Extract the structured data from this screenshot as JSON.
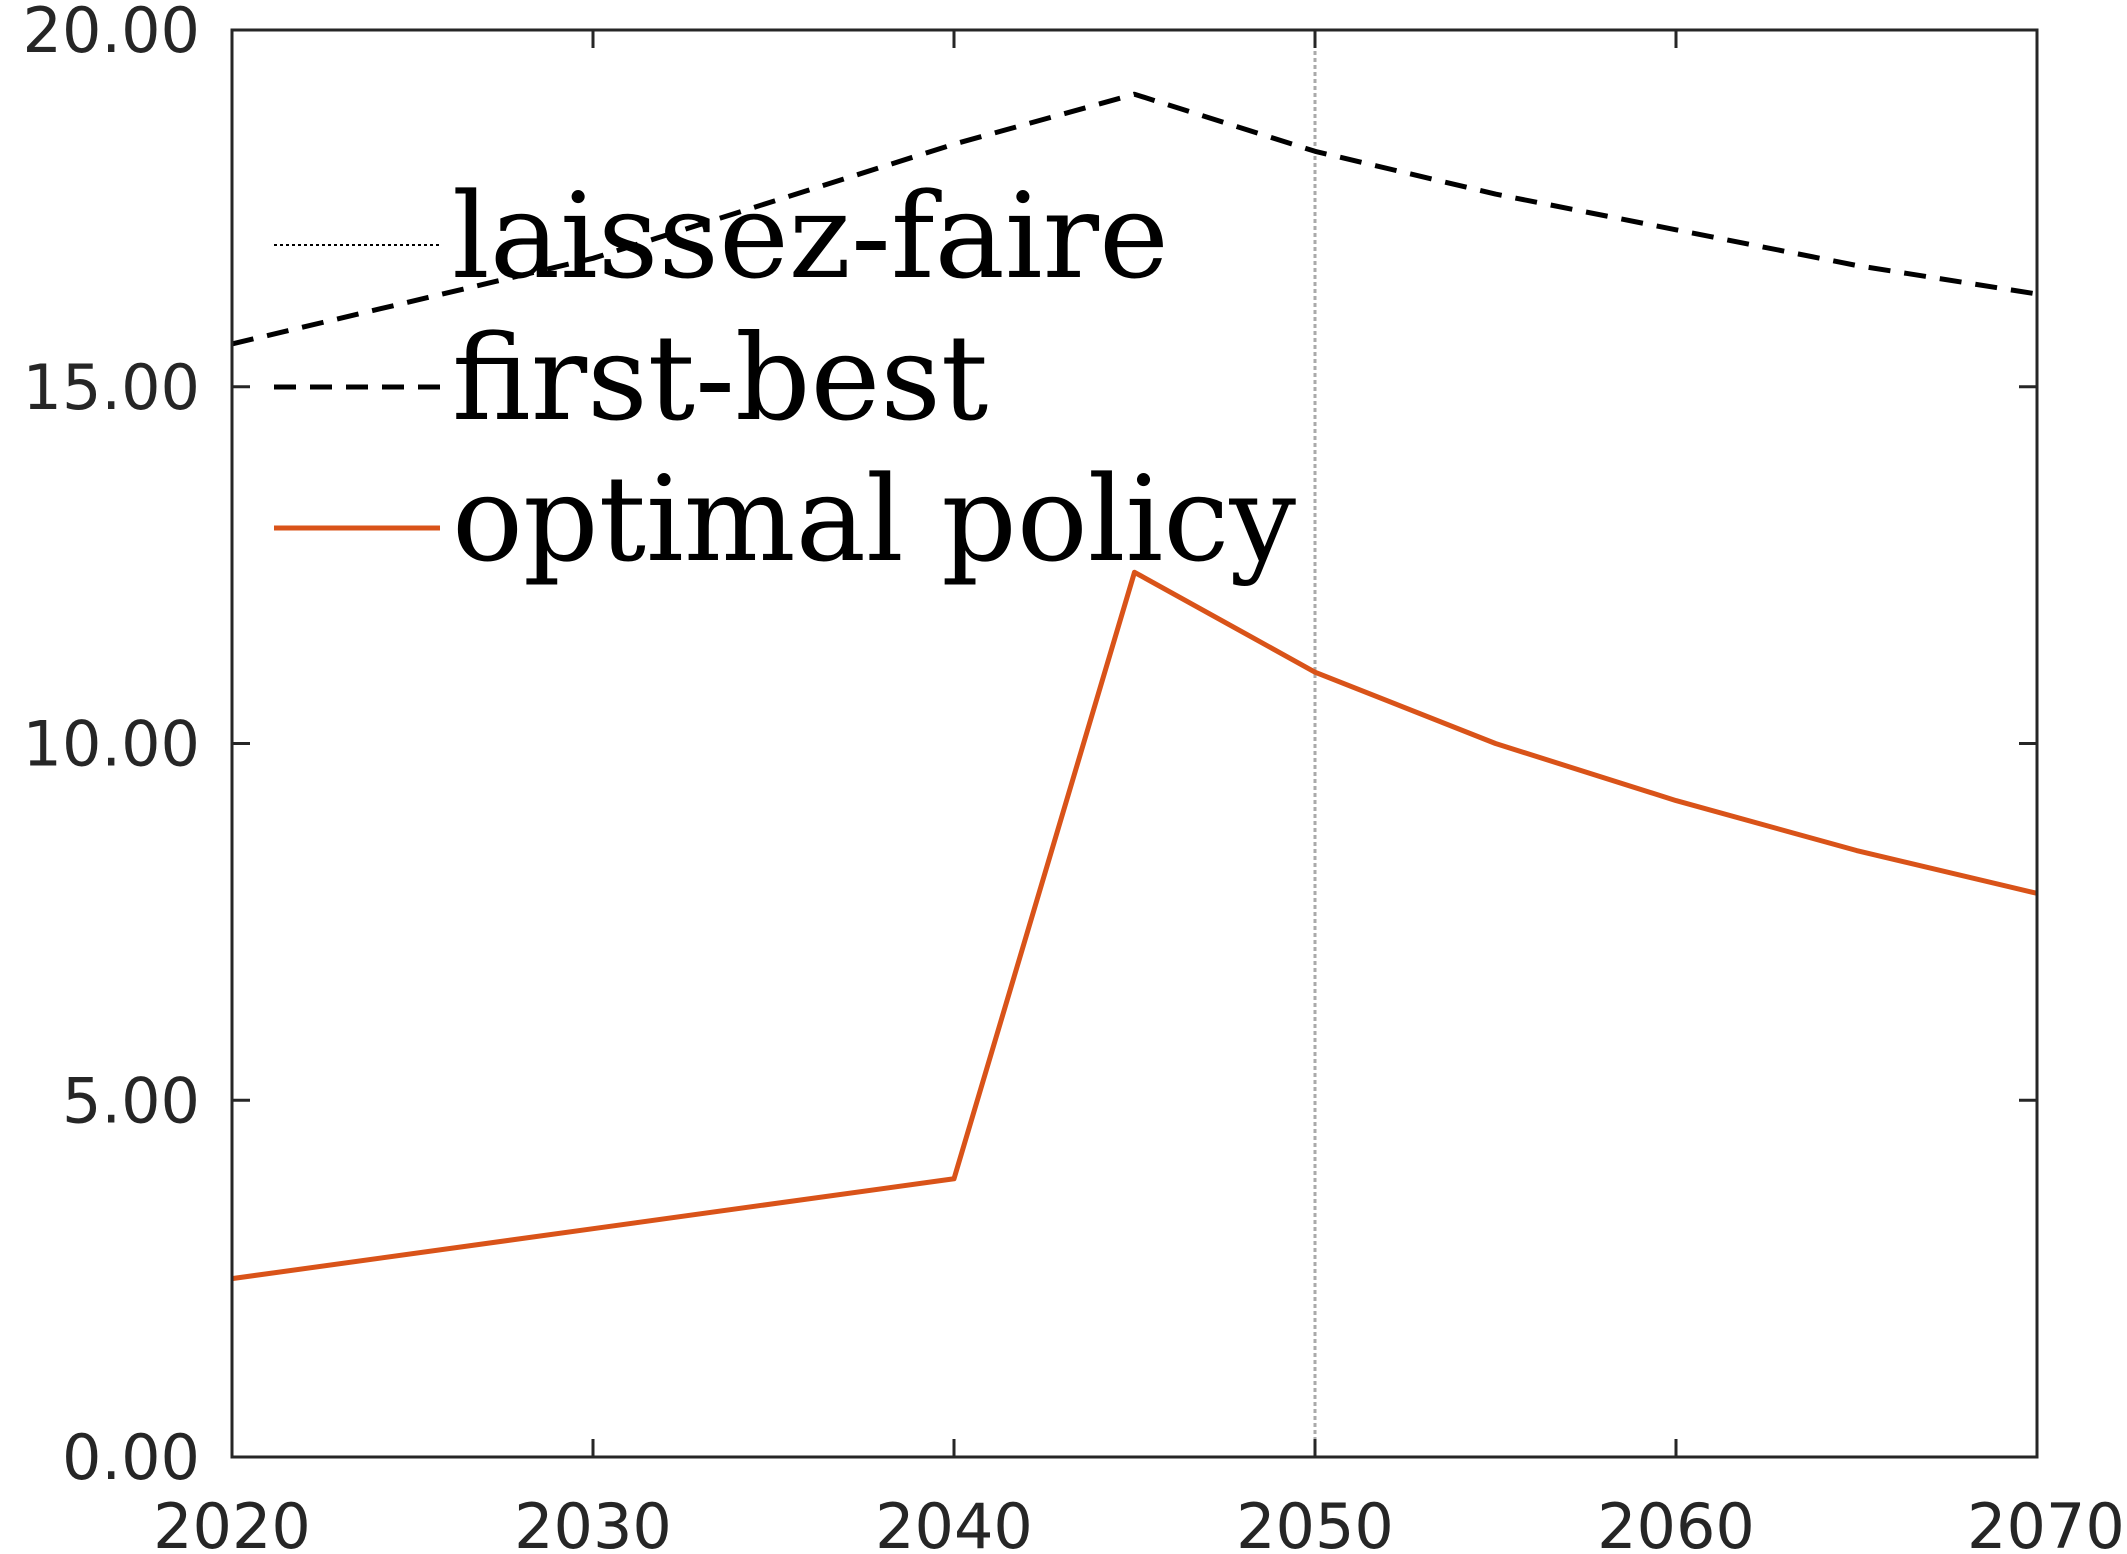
{
  "chart_data": {
    "type": "line",
    "title": "",
    "xlabel": "",
    "ylabel": "",
    "xlim": [
      2020,
      2070
    ],
    "ylim": [
      0,
      20
    ],
    "xticks": [
      2020,
      2030,
      2040,
      2050,
      2060,
      2070
    ],
    "yticks": [
      0,
      5,
      10,
      15,
      20
    ],
    "xtick_labels": [
      "2020",
      "2030",
      "2040",
      "2050",
      "2060",
      "2070"
    ],
    "ytick_labels": [
      "0.00",
      "5.00",
      "10.00",
      "15.00",
      "20.00"
    ],
    "grid": false,
    "reference_line_x": 2050,
    "legend": {
      "position": "top-left"
    },
    "series": [
      {
        "name": "laissez-faire",
        "style": "dotted",
        "color": "#000000",
        "x": [
          2043,
          2050,
          2060,
          2070
        ],
        "y": [
          0,
          0,
          0,
          0
        ]
      },
      {
        "name": "first-best",
        "style": "dashed",
        "color": "#000000",
        "x": [
          2020,
          2030,
          2040,
          2045,
          2050,
          2055,
          2060,
          2065,
          2070
        ],
        "y": [
          15.6,
          16.8,
          18.4,
          19.1,
          18.3,
          17.7,
          17.2,
          16.7,
          16.3
        ]
      },
      {
        "name": "optimal policy",
        "style": "solid",
        "color": "#D95319",
        "x": [
          2020,
          2030,
          2040,
          2045,
          2050,
          2055,
          2060,
          2065,
          2070
        ],
        "y": [
          2.5,
          3.2,
          3.9,
          12.4,
          11.0,
          10.0,
          9.2,
          8.5,
          7.9
        ]
      }
    ]
  }
}
